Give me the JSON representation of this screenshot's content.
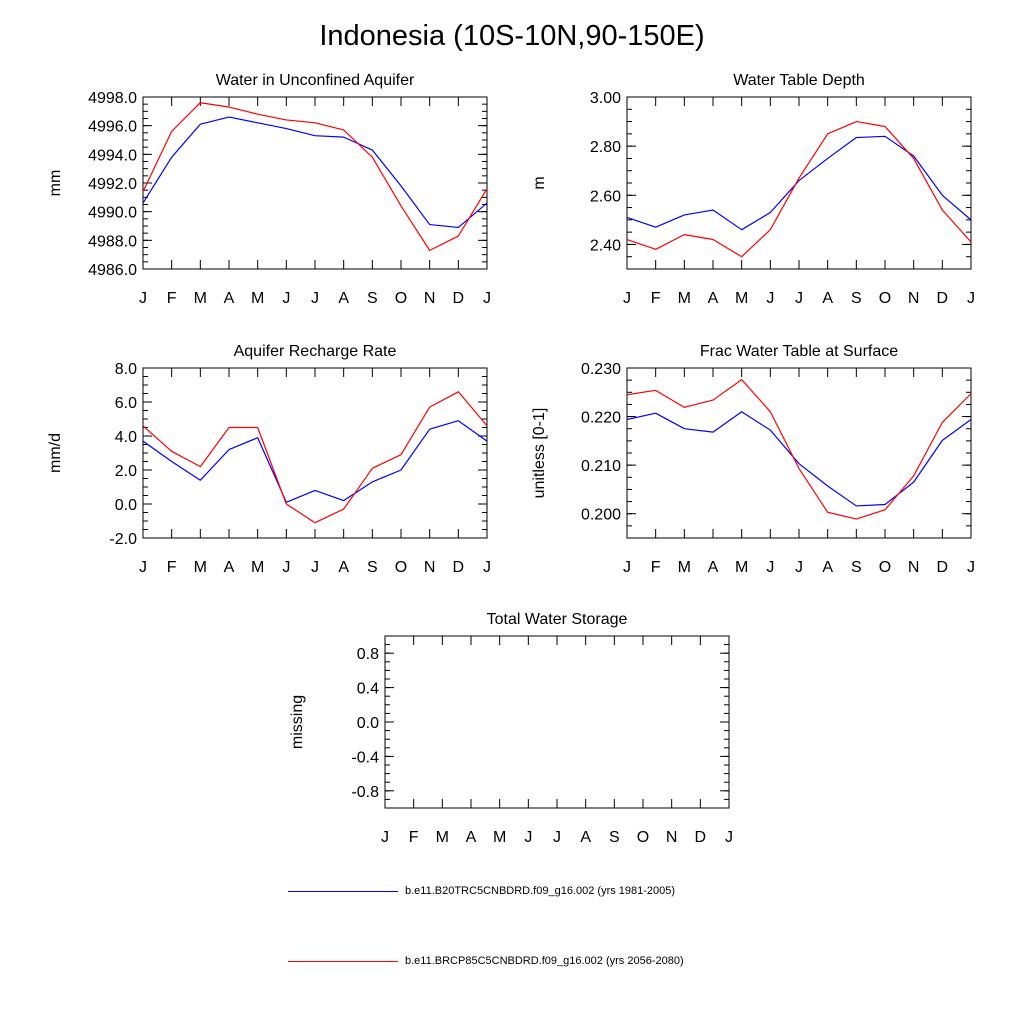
{
  "figure_title": "Indonesia (10S-10N,90-150E)",
  "colors": {
    "blue": "#0000ff",
    "red": "#ff0000"
  },
  "legend": [
    {
      "label": "b.e11.B20TRC5CNBDRD.f09_g16.002 (yrs 1981-2005)",
      "color": "#0000ff"
    },
    {
      "label": "b.e11.BRCP85C5CNBDRD.f09_g16.002 (yrs 2056-2080)",
      "color": "#ff0000"
    }
  ],
  "chart_data": [
    {
      "type": "line",
      "title": "Water in Unconfined Aquifer",
      "ylabel": "mm",
      "xlabel": "",
      "categories": [
        "J",
        "F",
        "M",
        "A",
        "M",
        "J",
        "J",
        "A",
        "S",
        "O",
        "N",
        "D",
        "J"
      ],
      "ylim": [
        4986.0,
        4998.0
      ],
      "yticks": [
        4986.0,
        4988.0,
        4990.0,
        4992.0,
        4994.0,
        4996.0,
        4998.0
      ],
      "tick_decimals": 1,
      "series": [
        {
          "color": "blue",
          "values": [
            4990.6,
            4993.8,
            4996.1,
            4996.6,
            4996.2,
            4995.8,
            4995.3,
            4995.2,
            4994.3,
            4991.8,
            4989.1,
            4988.9,
            4990.6
          ]
        },
        {
          "color": "red",
          "values": [
            4991.4,
            4995.6,
            4997.6,
            4997.3,
            4996.8,
            4996.4,
            4996.2,
            4995.7,
            4993.8,
            4990.4,
            4987.3,
            4988.3,
            4991.6
          ]
        }
      ]
    },
    {
      "type": "line",
      "title": "Water Table Depth",
      "ylabel": "m",
      "xlabel": "",
      "categories": [
        "J",
        "F",
        "M",
        "A",
        "M",
        "J",
        "J",
        "A",
        "S",
        "O",
        "N",
        "D",
        "J"
      ],
      "ylim": [
        2.3,
        3.0
      ],
      "yticks": [
        2.4,
        2.6,
        2.8,
        3.0
      ],
      "tick_decimals": 2,
      "series": [
        {
          "color": "blue",
          "values": [
            2.51,
            2.47,
            2.52,
            2.54,
            2.46,
            2.53,
            2.66,
            2.75,
            2.835,
            2.84,
            2.76,
            2.6,
            2.5
          ]
        },
        {
          "color": "red",
          "values": [
            2.42,
            2.38,
            2.44,
            2.42,
            2.35,
            2.46,
            2.67,
            2.85,
            2.9,
            2.88,
            2.75,
            2.54,
            2.41
          ]
        }
      ]
    },
    {
      "type": "line",
      "title": "Aquifer Recharge Rate",
      "ylabel": "mm/d",
      "xlabel": "",
      "categories": [
        "J",
        "F",
        "M",
        "A",
        "M",
        "J",
        "J",
        "A",
        "S",
        "O",
        "N",
        "D",
        "J"
      ],
      "ylim": [
        -2.0,
        8.0
      ],
      "yticks": [
        -2.0,
        0.0,
        2.0,
        4.0,
        6.0,
        8.0
      ],
      "tick_decimals": 1,
      "series": [
        {
          "color": "blue",
          "values": [
            3.7,
            2.5,
            1.4,
            3.2,
            3.9,
            0.1,
            0.8,
            0.2,
            1.3,
            2.0,
            4.4,
            4.9,
            3.7
          ]
        },
        {
          "color": "red",
          "values": [
            4.6,
            3.1,
            2.2,
            4.5,
            4.5,
            0.0,
            -1.1,
            -0.3,
            2.1,
            2.9,
            5.7,
            6.6,
            4.6
          ]
        }
      ]
    },
    {
      "type": "line",
      "title": "Frac Water Table at Surface",
      "ylabel": "unitless [0-1]",
      "xlabel": "",
      "categories": [
        "J",
        "F",
        "M",
        "A",
        "M",
        "J",
        "J",
        "A",
        "S",
        "O",
        "N",
        "D",
        "J"
      ],
      "ylim": [
        0.195,
        0.23
      ],
      "yticks": [
        0.2,
        0.21,
        0.22,
        0.23
      ],
      "tick_decimals": 3,
      "series": [
        {
          "color": "blue",
          "values": [
            0.2194,
            0.2207,
            0.2175,
            0.2168,
            0.221,
            0.2172,
            0.2103,
            0.2057,
            0.2016,
            0.2019,
            0.2065,
            0.2151,
            0.2194
          ]
        },
        {
          "color": "red",
          "values": [
            0.2245,
            0.2254,
            0.2219,
            0.2234,
            0.2276,
            0.221,
            0.2093,
            0.2003,
            0.1989,
            0.2008,
            0.2078,
            0.2188,
            0.2247
          ]
        }
      ]
    },
    {
      "type": "line",
      "title": "Total Water Storage",
      "ylabel": "missing",
      "xlabel": "",
      "categories": [
        "J",
        "F",
        "M",
        "A",
        "M",
        "J",
        "J",
        "A",
        "S",
        "O",
        "N",
        "D",
        "J"
      ],
      "ylim": [
        -1.0,
        1.0
      ],
      "yticks": [
        -0.8,
        -0.4,
        0.0,
        0.4,
        0.8
      ],
      "tick_decimals": 1,
      "series": []
    }
  ]
}
